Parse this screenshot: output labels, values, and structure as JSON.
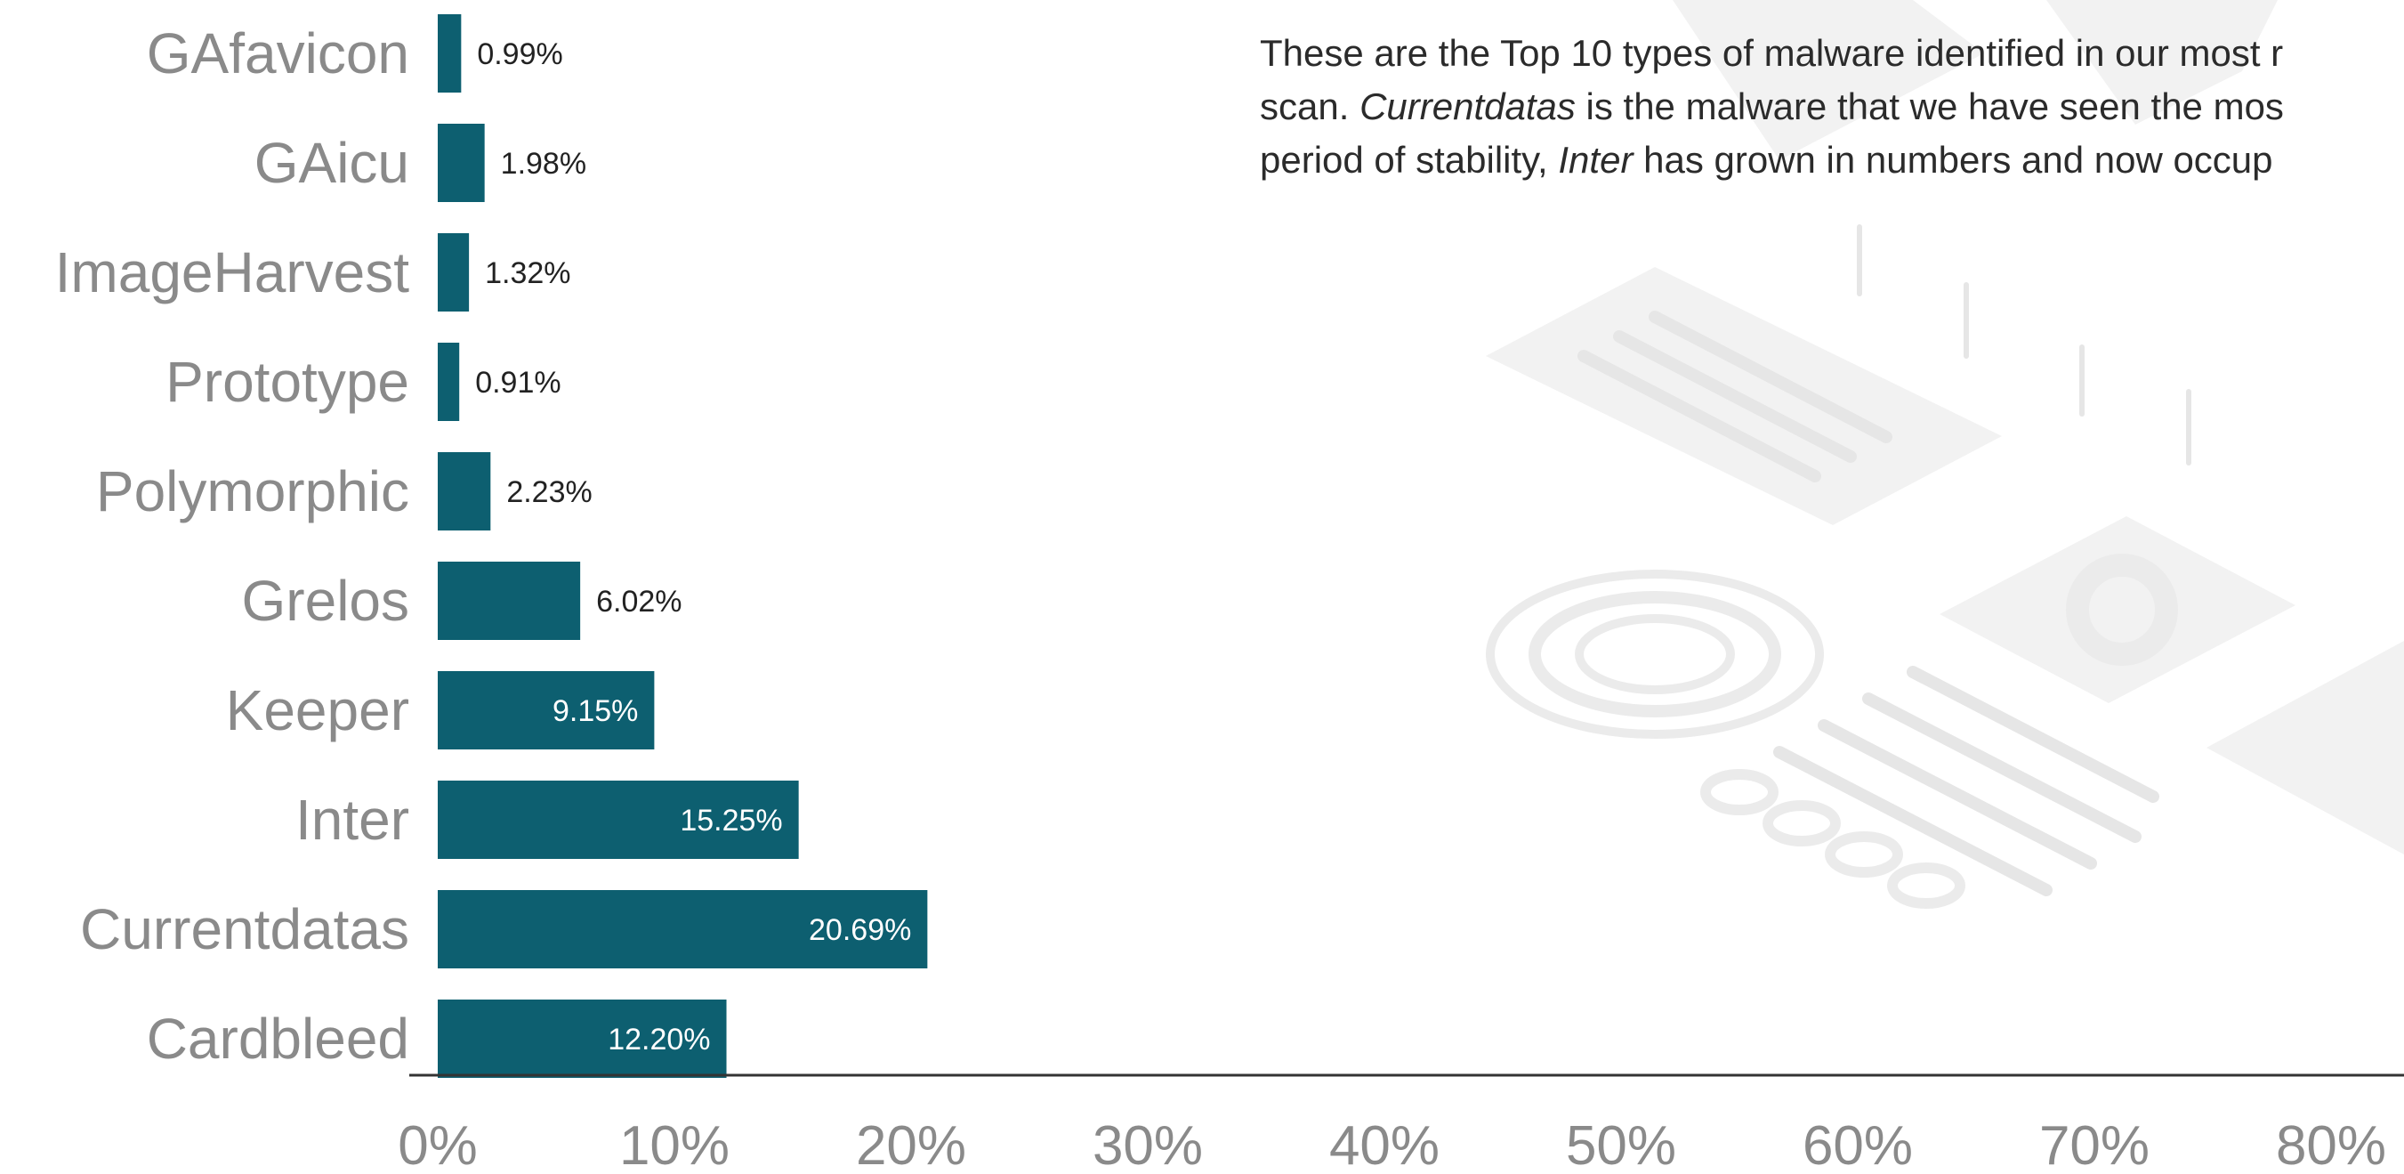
{
  "colors": {
    "bar": "#0d5f70",
    "category_text": "#8a8a8a",
    "value_inside": "#ffffff",
    "value_outside": "#222222",
    "axis": "#333333"
  },
  "description": {
    "line1": {
      "text": "These are the Top 10 types of malware identified in our most r"
    },
    "line2": {
      "pre": "scan. ",
      "em": "Currentdatas",
      "post": " is the malware that we have seen the mos"
    },
    "line3": {
      "pre": "period of stability, ",
      "em": "Inter",
      "post": " has grown in numbers and now occup"
    }
  },
  "chart_data": {
    "type": "bar",
    "orientation": "horizontal",
    "categories": [
      "GAfavicon",
      "GAicu",
      "ImageHarvest",
      "Prototype",
      "Polymorphic",
      "Grelos",
      "Keeper",
      "Inter",
      "Currentdatas",
      "Cardbleed"
    ],
    "values": [
      0.99,
      1.98,
      1.32,
      0.91,
      2.23,
      6.02,
      9.15,
      15.25,
      20.69,
      12.2
    ],
    "value_labels": [
      "0.99%",
      "1.98%",
      "1.32%",
      "0.91%",
      "2.23%",
      "6.02%",
      "9.15%",
      "15.25%",
      "20.69%",
      "12.20%"
    ],
    "x_ticks": [
      "0%",
      "10%",
      "20%",
      "30%",
      "40%",
      "50%",
      "60%",
      "70%",
      "80%"
    ],
    "xlim": [
      0,
      100
    ],
    "grid": false,
    "legend": "none"
  }
}
